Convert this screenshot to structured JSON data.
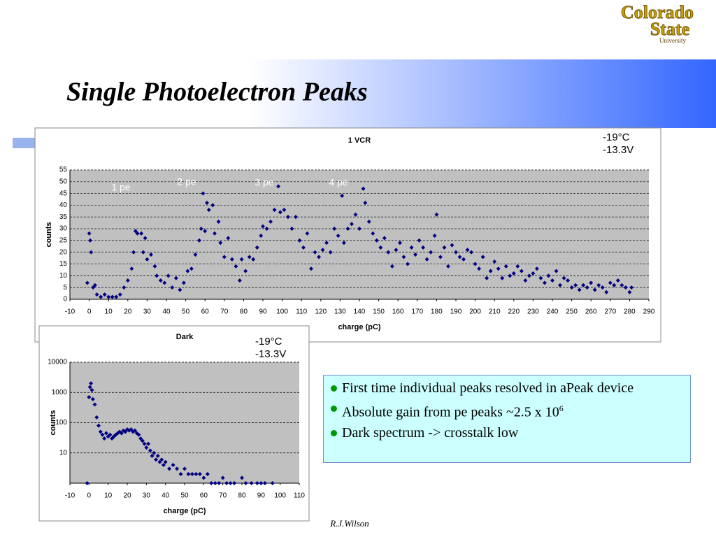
{
  "title": "Single Photoelectron Peaks",
  "logo": [
    "Colorado",
    "State",
    "University"
  ],
  "footer": "R.J.Wilson",
  "bullets": [
    {
      "text": "First time individual peaks resolved in aPeak device"
    },
    {
      "text": "Absolute gain from pe peaks ~2.5 x 10",
      "sup": "6"
    },
    {
      "text": "Dark spectrum -> crosstalk low"
    }
  ],
  "chart_data": [
    {
      "type": "scatter",
      "title": "1 VCR",
      "xlabel": "charge (pC)",
      "ylabel": "counts",
      "conditions": [
        "-19°C",
        "-13.3V"
      ],
      "annotations": [
        "1 pe",
        "2 pe",
        "3 pe",
        "4 pe"
      ],
      "xlim": [
        -10,
        290
      ],
      "xticks": [
        -10,
        0,
        10,
        20,
        30,
        40,
        50,
        60,
        70,
        80,
        90,
        100,
        110,
        120,
        130,
        140,
        150,
        160,
        170,
        180,
        190,
        200,
        210,
        220,
        230,
        240,
        250,
        260,
        270,
        280,
        290
      ],
      "ylim": [
        0,
        55
      ],
      "yticks": [
        0,
        5,
        10,
        15,
        20,
        25,
        30,
        35,
        40,
        45,
        50,
        55
      ],
      "grid": true,
      "log_y": false,
      "series": [
        {
          "name": "counts",
          "color": "#000080",
          "x": [
            -1,
            0,
            0.5,
            1,
            2,
            3,
            4,
            6,
            8,
            10,
            12,
            14,
            16,
            18,
            20,
            22,
            23,
            24,
            25,
            27,
            28,
            29,
            30,
            32,
            34,
            35,
            37,
            39,
            41,
            43,
            45,
            47,
            49,
            51,
            53,
            55,
            57,
            58,
            59,
            60,
            61,
            62,
            64,
            65,
            67,
            68,
            70,
            72,
            74,
            76,
            78,
            79,
            81,
            83,
            85,
            87,
            89,
            90,
            92,
            94,
            96,
            98,
            99,
            101,
            103,
            105,
            107,
            109,
            111,
            113,
            115,
            117,
            119,
            121,
            123,
            125,
            127,
            129,
            131,
            132,
            134,
            136,
            138,
            140,
            142,
            143,
            145,
            147,
            149,
            151,
            153,
            155,
            157,
            159,
            161,
            163,
            165,
            167,
            169,
            171,
            173,
            175,
            177,
            179,
            180,
            182,
            184,
            186,
            188,
            190,
            192,
            194,
            196,
            198,
            200,
            202,
            204,
            206,
            208,
            210,
            212,
            214,
            216,
            218,
            220,
            222,
            224,
            226,
            228,
            230,
            232,
            234,
            236,
            238,
            240,
            242,
            244,
            246,
            248,
            250,
            252,
            254,
            256,
            258,
            260,
            262,
            264,
            266,
            268,
            270,
            272,
            274,
            276,
            278,
            280,
            281
          ],
          "values": [
            7,
            28,
            25,
            20,
            5,
            6,
            2,
            1,
            2,
            1,
            1,
            1,
            2,
            5,
            8,
            13,
            20,
            29,
            28,
            28,
            20,
            26,
            17,
            19,
            14,
            10,
            8,
            7,
            10,
            5,
            9,
            4,
            7,
            12,
            13,
            19,
            25,
            30,
            45,
            29,
            41,
            38,
            40,
            28,
            33,
            24,
            18,
            26,
            17,
            14,
            8,
            17,
            12,
            18,
            17,
            22,
            27,
            31,
            30,
            33,
            38,
            48,
            37,
            38,
            35,
            30,
            35,
            25,
            22,
            28,
            13,
            20,
            18,
            21,
            24,
            20,
            30,
            27,
            44,
            24,
            30,
            32,
            36,
            30,
            47,
            41,
            33,
            28,
            25,
            22,
            26,
            20,
            14,
            21,
            24,
            18,
            15,
            22,
            19,
            25,
            22,
            17,
            20,
            27,
            36,
            18,
            22,
            14,
            23,
            20,
            18,
            17,
            21,
            20,
            15,
            13,
            18,
            9,
            12,
            16,
            13,
            9,
            14,
            10,
            11,
            14,
            12,
            8,
            10,
            11,
            13,
            9,
            7,
            10,
            8,
            12,
            6,
            9,
            8,
            5,
            6,
            4,
            6,
            5,
            7,
            4,
            6,
            5,
            3,
            7,
            6,
            8,
            6,
            5,
            3,
            5
          ]
        }
      ]
    },
    {
      "type": "scatter",
      "title": "Dark",
      "xlabel": "charge (pC)",
      "ylabel": "counts",
      "conditions": [
        "-19°C",
        "-13.3V"
      ],
      "xlim": [
        -10,
        110
      ],
      "xticks": [
        -10,
        0,
        10,
        20,
        30,
        40,
        50,
        60,
        70,
        80,
        90,
        100,
        110
      ],
      "ylim": [
        1,
        10000
      ],
      "yticks": [
        10,
        100,
        1000,
        10000
      ],
      "grid": true,
      "log_y": true,
      "series": [
        {
          "name": "counts",
          "color": "#000080",
          "x": [
            -1,
            0,
            0.5,
            1,
            1.5,
            2,
            3,
            4,
            5,
            6,
            7,
            8,
            9,
            10,
            11,
            12,
            13,
            14,
            15,
            16,
            17,
            18,
            19,
            20,
            21,
            22,
            23,
            24,
            25,
            26,
            27,
            28,
            29,
            30,
            31,
            32,
            33,
            34,
            35,
            36,
            37,
            38,
            39,
            40,
            42,
            44,
            46,
            48,
            50,
            52,
            54,
            56,
            58,
            60,
            62,
            64,
            66,
            68,
            70,
            72,
            74,
            76,
            80,
            82,
            85,
            88,
            90,
            92,
            96
          ],
          "values": [
            1,
            700,
            1500,
            2000,
            1200,
            600,
            400,
            150,
            80,
            50,
            40,
            30,
            45,
            35,
            40,
            30,
            35,
            40,
            45,
            50,
            45,
            55,
            50,
            60,
            55,
            60,
            50,
            55,
            45,
            40,
            30,
            25,
            20,
            15,
            20,
            12,
            8,
            10,
            6,
            8,
            5,
            6,
            4,
            5,
            3,
            4,
            3,
            2,
            3,
            2,
            2,
            2,
            2,
            1.5,
            2,
            1,
            1,
            1,
            1.5,
            1,
            1,
            1,
            1.5,
            1,
            1,
            1,
            1,
            1,
            1
          ]
        }
      ]
    }
  ]
}
